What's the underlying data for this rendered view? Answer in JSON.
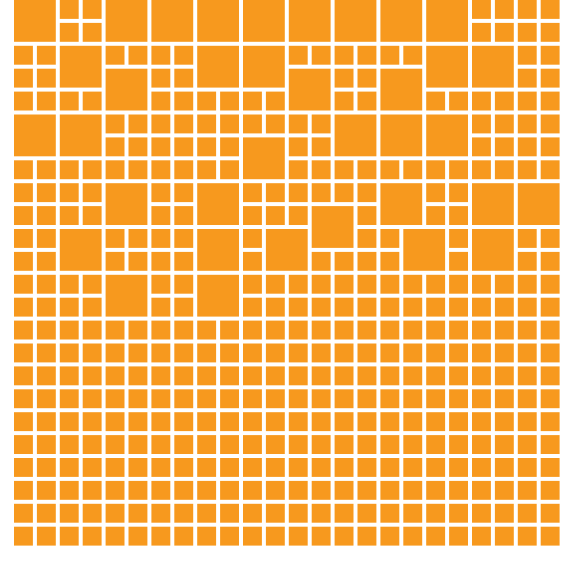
{
  "colors": {
    "fill": "#F7991E",
    "background": "#FFFFFF"
  },
  "pattern": {
    "shape": "square",
    "columns": 24,
    "rows": 24,
    "merge_blocks": [
      [
        0,
        0,
        2
      ],
      [
        4,
        0,
        2
      ],
      [
        6,
        0,
        2
      ],
      [
        8,
        0,
        2
      ],
      [
        10,
        0,
        2
      ],
      [
        12,
        0,
        2
      ],
      [
        14,
        0,
        2
      ],
      [
        16,
        0,
        2
      ],
      [
        18,
        0,
        2
      ],
      [
        2,
        2,
        2
      ],
      [
        8,
        2,
        2
      ],
      [
        10,
        2,
        2
      ],
      [
        18,
        2,
        2
      ],
      [
        20,
        2,
        2
      ],
      [
        4,
        3,
        2
      ],
      [
        12,
        3,
        2
      ],
      [
        16,
        3,
        2
      ],
      [
        0,
        5,
        2
      ],
      [
        2,
        5,
        2
      ],
      [
        14,
        5,
        2
      ],
      [
        16,
        5,
        2
      ],
      [
        18,
        5,
        2
      ],
      [
        10,
        6,
        2
      ],
      [
        4,
        8,
        2
      ],
      [
        8,
        8,
        2
      ],
      [
        16,
        8,
        2
      ],
      [
        20,
        8,
        2
      ],
      [
        22,
        8,
        2
      ],
      [
        13,
        9,
        2
      ],
      [
        19,
        9,
        2
      ],
      [
        2,
        10,
        2
      ],
      [
        8,
        10,
        2
      ],
      [
        11,
        10,
        2
      ],
      [
        17,
        10,
        2
      ],
      [
        20,
        10,
        2
      ],
      [
        4,
        12,
        2
      ],
      [
        8,
        12,
        2
      ]
    ]
  }
}
